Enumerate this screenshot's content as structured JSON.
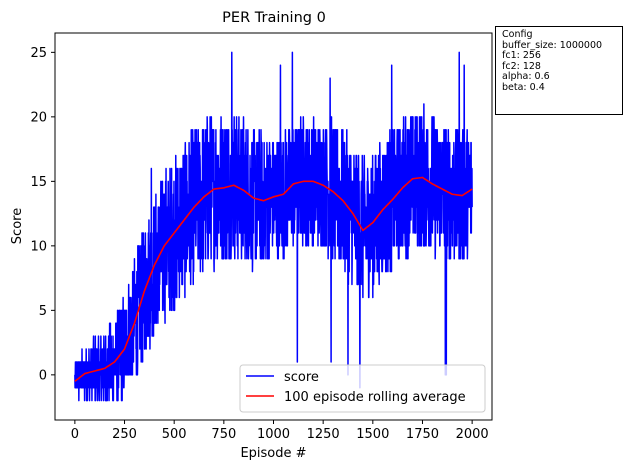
{
  "chart_data": {
    "type": "line",
    "title": "PER Training 0",
    "xlabel": "Episode #",
    "ylabel": "Score",
    "xlim": [
      -100,
      2100
    ],
    "ylim": [
      -3.5,
      26.5
    ],
    "xticks": [
      0,
      250,
      500,
      750,
      1000,
      1250,
      1500,
      1750,
      2000
    ],
    "yticks": [
      0,
      5,
      10,
      15,
      20,
      25
    ],
    "legend_position": "lower-right",
    "series": [
      {
        "name": "score",
        "color": "#0000ff",
        "generated": true,
        "amplitude_envelope": {
          "x": [
            0,
            100,
            200,
            300,
            400,
            500,
            600,
            700,
            800,
            900,
            1000,
            1100,
            1200,
            1300,
            1400,
            1500,
            1600,
            1700,
            1800,
            1900,
            2000
          ],
          "values": [
            1.5,
            2.5,
            3.5,
            5,
            5.5,
            6,
            6,
            6,
            6,
            5.5,
            5,
            5,
            5,
            5.5,
            5.5,
            5.5,
            5.5,
            5.5,
            5.5,
            5.5,
            5.5
          ]
        },
        "notable_points": [
          {
            "x": 385,
            "y": 16
          },
          {
            "x": 790,
            "y": 25
          },
          {
            "x": 1035,
            "y": 24
          },
          {
            "x": 1095,
            "y": 25
          },
          {
            "x": 1285,
            "y": 23
          },
          {
            "x": 1595,
            "y": 24
          },
          {
            "x": 1935,
            "y": 25
          },
          {
            "x": 1960,
            "y": 24
          },
          {
            "x": 1120,
            "y": 1
          },
          {
            "x": 1290,
            "y": 1
          },
          {
            "x": 1375,
            "y": 0
          },
          {
            "x": 1435,
            "y": -1
          },
          {
            "x": 1865,
            "y": 0
          },
          {
            "x": 1870,
            "y": 0
          }
        ]
      },
      {
        "name": "100 episode rolling average",
        "color": "#ff0000",
        "x": [
          0,
          50,
          100,
          150,
          200,
          250,
          300,
          350,
          400,
          450,
          500,
          550,
          600,
          650,
          700,
          750,
          800,
          850,
          900,
          950,
          1000,
          1050,
          1100,
          1150,
          1200,
          1250,
          1300,
          1350,
          1400,
          1450,
          1500,
          1550,
          1600,
          1650,
          1700,
          1750,
          1800,
          1850,
          1900,
          1950,
          2000
        ],
        "values": [
          -0.5,
          0.1,
          0.3,
          0.5,
          1.0,
          2.0,
          4.0,
          6.5,
          8.5,
          10.0,
          11.0,
          12.0,
          13.0,
          13.8,
          14.4,
          14.5,
          14.7,
          14.3,
          13.7,
          13.5,
          13.8,
          14.0,
          14.8,
          15.0,
          15.0,
          14.7,
          14.2,
          13.5,
          12.5,
          11.2,
          11.8,
          12.8,
          13.6,
          14.5,
          15.2,
          15.3,
          14.8,
          14.4,
          14.0,
          13.9,
          14.4
        ]
      }
    ]
  },
  "config_box": {
    "title": "Config",
    "lines": [
      "buffer_size: 1000000",
      "fc1: 256",
      "fc2: 128",
      "alpha: 0.6",
      "beta: 0.4"
    ]
  }
}
